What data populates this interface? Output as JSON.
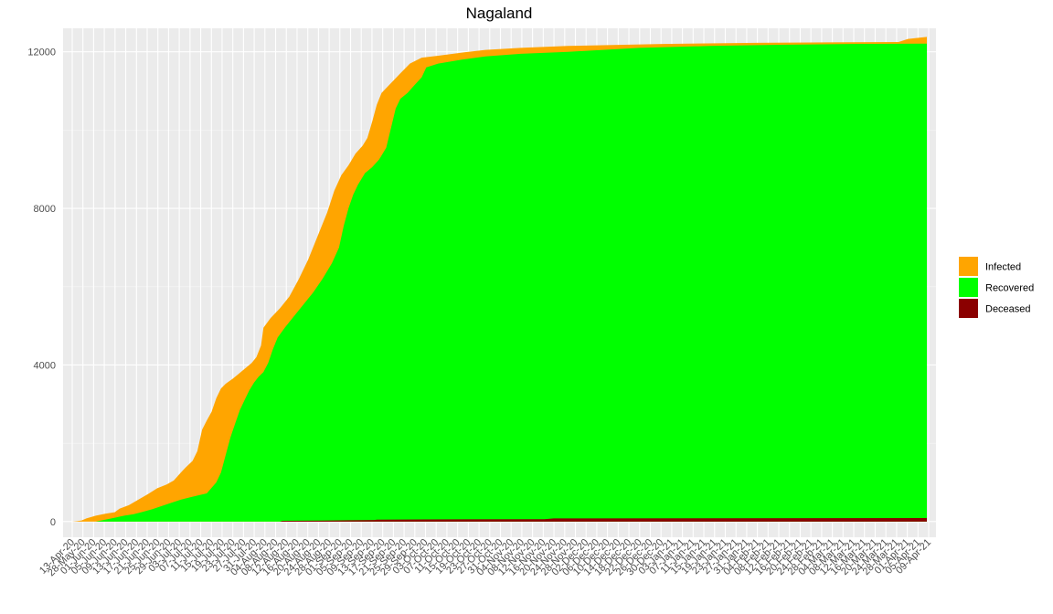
{
  "chart_data": {
    "type": "area",
    "stacking": "overlay",
    "title": "Nagaland",
    "xlabel": "",
    "ylabel": "",
    "ylim": [
      -400,
      12600
    ],
    "yticks": [
      0,
      4000,
      8000,
      12000
    ],
    "x_range": [
      "2020-04-13",
      "2021-04-10"
    ],
    "x_tick_labels": [
      "13-Apr-20",
      "28-May-20",
      "01-Jun-20",
      "05-Jun-20",
      "09-Jun-20",
      "13-Jun-20",
      "17-Jun-20",
      "21-Jun-20",
      "25-Jun-20",
      "29-Jun-20",
      "03-Jul-20",
      "07-Jul-20",
      "11-Jul-20",
      "15-Jul-20",
      "19-Jul-20",
      "23-Jul-20",
      "27-Jul-20",
      "31-Jul-20",
      "04-Aug-20",
      "08-Aug-20",
      "12-Aug-20",
      "16-Aug-20",
      "20-Aug-20",
      "24-Aug-20",
      "28-Aug-20",
      "01-Sep-20",
      "05-Sep-20",
      "09-Sep-20",
      "13-Sep-20",
      "17-Sep-20",
      "21-Sep-20",
      "25-Sep-20",
      "29-Sep-20",
      "03-Oct-20",
      "07-Oct-20",
      "11-Oct-20",
      "15-Oct-20",
      "19-Oct-20",
      "23-Oct-20",
      "27-Oct-20",
      "31-Oct-20",
      "04-Nov-20",
      "08-Nov-20",
      "12-Nov-20",
      "16-Nov-20",
      "20-Nov-20",
      "24-Nov-20",
      "28-Nov-20",
      "02-Dec-20",
      "06-Dec-20",
      "10-Dec-20",
      "14-Dec-20",
      "18-Dec-20",
      "22-Dec-20",
      "26-Dec-20",
      "30-Dec-20",
      "03-Jan-21",
      "07-Jan-21",
      "11-Jan-21",
      "15-Jan-21",
      "19-Jan-21",
      "23-Jan-21",
      "27-Jan-21",
      "31-Jan-21",
      "04-Feb-21",
      "08-Feb-21",
      "12-Feb-21",
      "16-Feb-21",
      "20-Feb-21",
      "24-Feb-21",
      "28-Feb-21",
      "04-Mar-21",
      "08-Mar-21",
      "12-Mar-21",
      "16-Mar-21",
      "20-Mar-21",
      "24-Mar-21",
      "28-Mar-21",
      "01-Apr-21",
      "05-Apr-21",
      "09-Apr-21"
    ],
    "grid": true,
    "legend": {
      "position": "right",
      "entries": [
        "Infected",
        "Recovered",
        "Deceased"
      ]
    },
    "series": [
      {
        "name": "Infected",
        "color": "#FFA500",
        "points": [
          [
            0,
            0
          ],
          [
            2,
            10
          ],
          [
            4,
            30
          ],
          [
            6,
            80
          ],
          [
            10,
            150
          ],
          [
            14,
            200
          ],
          [
            18,
            240
          ],
          [
            20,
            330
          ],
          [
            24,
            420
          ],
          [
            28,
            560
          ],
          [
            32,
            700
          ],
          [
            36,
            850
          ],
          [
            40,
            950
          ],
          [
            43,
            1050
          ],
          [
            46,
            1250
          ],
          [
            48,
            1380
          ],
          [
            51,
            1550
          ],
          [
            53,
            1800
          ],
          [
            55,
            2350
          ],
          [
            57,
            2580
          ],
          [
            59,
            2800
          ],
          [
            61,
            3150
          ],
          [
            63,
            3400
          ],
          [
            65,
            3520
          ],
          [
            68,
            3650
          ],
          [
            70,
            3750
          ],
          [
            72,
            3850
          ],
          [
            74,
            3950
          ],
          [
            76,
            4050
          ],
          [
            78,
            4200
          ],
          [
            80,
            4500
          ],
          [
            81,
            4950
          ],
          [
            84,
            5200
          ],
          [
            88,
            5450
          ],
          [
            92,
            5750
          ],
          [
            96,
            6200
          ],
          [
            100,
            6700
          ],
          [
            104,
            7300
          ],
          [
            108,
            7900
          ],
          [
            111,
            8450
          ],
          [
            114,
            8850
          ],
          [
            117,
            9100
          ],
          [
            120,
            9400
          ],
          [
            123,
            9600
          ],
          [
            125,
            9800
          ],
          [
            127,
            10200
          ],
          [
            129,
            10650
          ],
          [
            131,
            10950
          ],
          [
            135,
            11200
          ],
          [
            139,
            11450
          ],
          [
            143,
            11700
          ],
          [
            148,
            11850
          ],
          [
            155,
            11900
          ],
          [
            165,
            11980
          ],
          [
            175,
            12050
          ],
          [
            190,
            12100
          ],
          [
            210,
            12150
          ],
          [
            250,
            12200
          ],
          [
            290,
            12230
          ],
          [
            320,
            12240
          ],
          [
            350,
            12250
          ],
          [
            354,
            12330
          ],
          [
            362,
            12380
          ]
        ]
      },
      {
        "name": "Recovered",
        "color": "#00FF00",
        "points": [
          [
            0,
            0
          ],
          [
            10,
            0
          ],
          [
            14,
            50
          ],
          [
            18,
            100
          ],
          [
            22,
            150
          ],
          [
            26,
            190
          ],
          [
            30,
            250
          ],
          [
            34,
            320
          ],
          [
            38,
            400
          ],
          [
            42,
            480
          ],
          [
            46,
            560
          ],
          [
            50,
            620
          ],
          [
            54,
            680
          ],
          [
            57,
            720
          ],
          [
            59,
            860
          ],
          [
            61,
            1000
          ],
          [
            63,
            1250
          ],
          [
            65,
            1700
          ],
          [
            67,
            2150
          ],
          [
            69,
            2500
          ],
          [
            71,
            2850
          ],
          [
            73,
            3100
          ],
          [
            75,
            3350
          ],
          [
            77,
            3550
          ],
          [
            79,
            3700
          ],
          [
            81,
            3820
          ],
          [
            83,
            4050
          ],
          [
            85,
            4400
          ],
          [
            87,
            4700
          ],
          [
            90,
            4950
          ],
          [
            94,
            5250
          ],
          [
            98,
            5550
          ],
          [
            102,
            5850
          ],
          [
            106,
            6200
          ],
          [
            110,
            6600
          ],
          [
            113,
            7000
          ],
          [
            115,
            7550
          ],
          [
            117,
            8000
          ],
          [
            119,
            8350
          ],
          [
            121,
            8600
          ],
          [
            124,
            8900
          ],
          [
            127,
            9050
          ],
          [
            130,
            9250
          ],
          [
            133,
            9550
          ],
          [
            135,
            10050
          ],
          [
            137,
            10550
          ],
          [
            139,
            10800
          ],
          [
            142,
            10950
          ],
          [
            145,
            11150
          ],
          [
            148,
            11350
          ],
          [
            150,
            11600
          ],
          [
            155,
            11700
          ],
          [
            165,
            11800
          ],
          [
            175,
            11880
          ],
          [
            190,
            11950
          ],
          [
            210,
            12000
          ],
          [
            240,
            12100
          ],
          [
            270,
            12150
          ],
          [
            300,
            12180
          ],
          [
            330,
            12200
          ],
          [
            362,
            12210
          ]
        ]
      },
      {
        "name": "Deceased",
        "color": "#8B0000",
        "points": [
          [
            0,
            0
          ],
          [
            88,
            0
          ],
          [
            89,
            20
          ],
          [
            106,
            25
          ],
          [
            110,
            30
          ],
          [
            128,
            40
          ],
          [
            129,
            50
          ],
          [
            150,
            55
          ],
          [
            200,
            60
          ],
          [
            204,
            80
          ],
          [
            362,
            90
          ]
        ]
      }
    ]
  }
}
